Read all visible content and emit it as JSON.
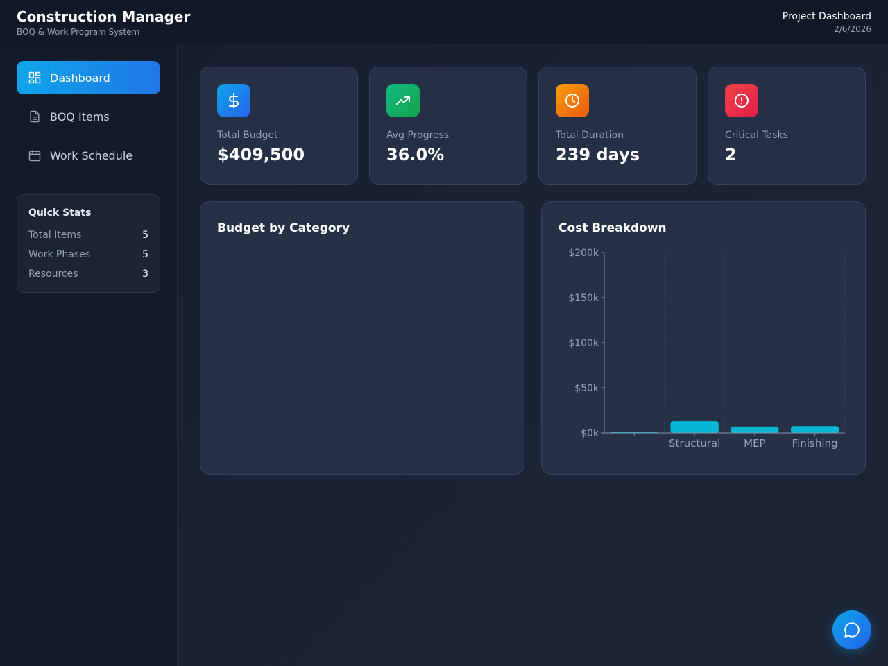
{
  "header": {
    "title": "Construction Manager",
    "subtitle": "BOQ & Work Program System",
    "page_label": "Project Dashboard",
    "date": "2/6/2026"
  },
  "sidebar": {
    "items": [
      {
        "label": "Dashboard",
        "icon": "dashboard-icon",
        "active": true
      },
      {
        "label": "BOQ Items",
        "icon": "document-icon",
        "active": false
      },
      {
        "label": "Work Schedule",
        "icon": "calendar-icon",
        "active": false
      }
    ],
    "quick_stats": {
      "title": "Quick Stats",
      "rows": [
        {
          "label": "Total Items",
          "value": "5"
        },
        {
          "label": "Work Phases",
          "value": "5"
        },
        {
          "label": "Resources",
          "value": "3"
        }
      ]
    }
  },
  "cards": [
    {
      "label": "Total Budget",
      "value": "$409,500",
      "icon": "dollar-icon",
      "color": "#0ea5e9"
    },
    {
      "label": "Avg Progress",
      "value": "36.0%",
      "icon": "trending-up-icon",
      "color": "#10b981"
    },
    {
      "label": "Total Duration",
      "value": "239 days",
      "icon": "clock-icon",
      "color": "#f59e0b"
    },
    {
      "label": "Critical Tasks",
      "value": "2",
      "icon": "alert-icon",
      "color": "#ef4444"
    }
  ],
  "panels": {
    "budget_by_category": {
      "title": "Budget by Category"
    },
    "cost_breakdown": {
      "title": "Cost Breakdown"
    }
  },
  "chart_data": {
    "type": "bar",
    "categories": [
      "",
      "Structural",
      "MEP",
      "Finishing"
    ],
    "values": [
      1000,
      13000,
      7000,
      7500
    ],
    "ylim": [
      0,
      200000
    ],
    "yticks": [
      0,
      50000,
      100000,
      150000,
      200000
    ],
    "ytick_labels": [
      "$0k",
      "$50k",
      "$100k",
      "$150k",
      "$200k"
    ],
    "grid": true,
    "bar_color": "#06b6d4"
  },
  "fab": {
    "icon": "chat-icon"
  }
}
